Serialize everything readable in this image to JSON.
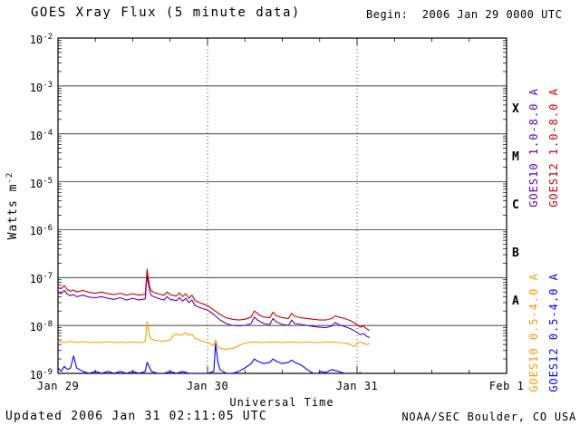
{
  "header": {
    "title": "GOES Xray Flux (5 minute data)",
    "begin_label": "Begin:  2006 Jan 29 0000 UTC"
  },
  "footer": {
    "updated": "Updated 2006 Jan 31 02:11:05 UTC",
    "source": "NOAA/SEC Boulder, CO USA"
  },
  "chart_data": {
    "type": "line",
    "title": "GOES Xray Flux (5 minute data)",
    "xlabel": "Universal Time",
    "ylabel": "Watts m^-2",
    "ylabel_base": "Watts m",
    "ylabel_exponent": "-2",
    "x_unit": "hours since 2006 Jan 29 0000 UTC",
    "xlim": [
      0,
      72
    ],
    "yscale": "log",
    "ylim": [
      1e-09,
      0.01
    ],
    "y_tick_exponents": [
      -2,
      -3,
      -4,
      -5,
      -6,
      -7,
      -8,
      -9
    ],
    "x_ticks": [
      {
        "hour": 0,
        "label": "Jan 29"
      },
      {
        "hour": 24,
        "label": "Jan 30"
      },
      {
        "hour": 48,
        "label": "Jan 31"
      },
      {
        "hour": 72,
        "label": "Feb 1"
      }
    ],
    "day_line_hours": [
      24,
      48,
      72
    ],
    "flux_classes": [
      {
        "label": "X",
        "center_exponent": -3.5
      },
      {
        "label": "M",
        "center_exponent": -4.5
      },
      {
        "label": "C",
        "center_exponent": -5.5
      },
      {
        "label": "B",
        "center_exponent": -6.5
      },
      {
        "label": "A",
        "center_exponent": -7.5
      }
    ],
    "grid": true,
    "legend_position": "right-rotated",
    "series": [
      {
        "id": "goes10-long",
        "name": "GOES10 1.0-8.0 A",
        "color": "#5c00b0",
        "points": [
          [
            0,
            5e-08
          ],
          [
            0.5,
            4.6e-08
          ],
          [
            1,
            5.4e-08
          ],
          [
            1.5,
            4.5e-08
          ],
          [
            2,
            4.2e-08
          ],
          [
            2.5,
            4.4e-08
          ],
          [
            3,
            4e-08
          ],
          [
            4,
            4.3e-08
          ],
          [
            5,
            3.9e-08
          ],
          [
            6,
            3.8e-08
          ],
          [
            7,
            4e-08
          ],
          [
            8,
            3.7e-08
          ],
          [
            9,
            3.5e-08
          ],
          [
            10,
            3.8e-08
          ],
          [
            11,
            3.4e-08
          ],
          [
            12,
            3.7e-08
          ],
          [
            13,
            3.4e-08
          ],
          [
            14,
            3.6e-08
          ],
          [
            14.3,
            1.1e-07
          ],
          [
            14.7,
            5.2e-08
          ],
          [
            15,
            4.2e-08
          ],
          [
            16,
            3.7e-08
          ],
          [
            17,
            3.4e-08
          ],
          [
            17.5,
            4e-08
          ],
          [
            18,
            3.5e-08
          ],
          [
            19,
            3.3e-08
          ],
          [
            19.5,
            3.8e-08
          ],
          [
            20,
            3.2e-08
          ],
          [
            20.5,
            3.7e-08
          ],
          [
            21,
            3e-08
          ],
          [
            21.5,
            3.4e-08
          ],
          [
            22,
            2.6e-08
          ],
          [
            23,
            2.3e-08
          ],
          [
            24,
            2.1e-08
          ],
          [
            25,
            1.7e-08
          ],
          [
            26,
            1.3e-08
          ],
          [
            27,
            1.1e-08
          ],
          [
            28,
            1e-08
          ],
          [
            29,
            9.8e-09
          ],
          [
            30,
            1e-08
          ],
          [
            31,
            1.1e-08
          ],
          [
            31.5,
            1.5e-08
          ],
          [
            32,
            1.3e-08
          ],
          [
            32.5,
            1.2e-08
          ],
          [
            33,
            1.1e-08
          ],
          [
            34,
            1.05e-08
          ],
          [
            34.5,
            1.4e-08
          ],
          [
            35,
            1.2e-08
          ],
          [
            36,
            1.05e-08
          ],
          [
            37,
            1e-08
          ],
          [
            37.5,
            1.3e-08
          ],
          [
            38,
            1.1e-08
          ],
          [
            39,
            1.05e-08
          ],
          [
            40,
            1e-08
          ],
          [
            41,
            9.5e-09
          ],
          [
            42,
            9.2e-09
          ],
          [
            43,
            9e-09
          ],
          [
            44,
            9.8e-09
          ],
          [
            44.5,
            1.15e-08
          ],
          [
            45,
            1.05e-08
          ],
          [
            46,
            9.5e-09
          ],
          [
            47,
            8.5e-09
          ],
          [
            48,
            7.2e-09
          ],
          [
            48.5,
            6.4e-09
          ],
          [
            49,
            6.8e-09
          ],
          [
            49.5,
            6e-09
          ],
          [
            50,
            5.6e-09
          ]
        ]
      },
      {
        "id": "goes12-long",
        "name": "GOES12 1.0-8.0 A",
        "color": "#cc0000",
        "points": [
          [
            0,
            6.2e-08
          ],
          [
            0.5,
            5.8e-08
          ],
          [
            1,
            6.8e-08
          ],
          [
            1.5,
            5.6e-08
          ],
          [
            2,
            5.2e-08
          ],
          [
            2.5,
            5.5e-08
          ],
          [
            3,
            5e-08
          ],
          [
            4,
            5.4e-08
          ],
          [
            5,
            4.9e-08
          ],
          [
            6,
            4.7e-08
          ],
          [
            7,
            5e-08
          ],
          [
            8,
            4.6e-08
          ],
          [
            9,
            4.4e-08
          ],
          [
            10,
            4.7e-08
          ],
          [
            11,
            4.3e-08
          ],
          [
            12,
            4.6e-08
          ],
          [
            13,
            4.3e-08
          ],
          [
            14,
            4.5e-08
          ],
          [
            14.3,
            1.5e-07
          ],
          [
            14.7,
            6.5e-08
          ],
          [
            15,
            5.2e-08
          ],
          [
            16,
            4.6e-08
          ],
          [
            17,
            4.3e-08
          ],
          [
            17.5,
            5e-08
          ],
          [
            18,
            4.4e-08
          ],
          [
            19,
            4.1e-08
          ],
          [
            19.5,
            4.8e-08
          ],
          [
            20,
            4e-08
          ],
          [
            20.5,
            4.6e-08
          ],
          [
            21,
            3.7e-08
          ],
          [
            21.5,
            4.3e-08
          ],
          [
            22,
            3.3e-08
          ],
          [
            23,
            2.9e-08
          ],
          [
            24,
            2.6e-08
          ],
          [
            25,
            2.1e-08
          ],
          [
            26,
            1.7e-08
          ],
          [
            27,
            1.45e-08
          ],
          [
            28,
            1.35e-08
          ],
          [
            29,
            1.3e-08
          ],
          [
            30,
            1.35e-08
          ],
          [
            31,
            1.5e-08
          ],
          [
            31.5,
            2e-08
          ],
          [
            32,
            1.8e-08
          ],
          [
            32.5,
            1.6e-08
          ],
          [
            33,
            1.5e-08
          ],
          [
            34,
            1.45e-08
          ],
          [
            34.5,
            1.9e-08
          ],
          [
            35,
            1.6e-08
          ],
          [
            36,
            1.45e-08
          ],
          [
            37,
            1.4e-08
          ],
          [
            37.5,
            1.8e-08
          ],
          [
            38,
            1.55e-08
          ],
          [
            39,
            1.45e-08
          ],
          [
            40,
            1.4e-08
          ],
          [
            41,
            1.35e-08
          ],
          [
            42,
            1.3e-08
          ],
          [
            43,
            1.3e-08
          ],
          [
            44,
            1.4e-08
          ],
          [
            44.5,
            1.6e-08
          ],
          [
            45,
            1.5e-08
          ],
          [
            46,
            1.4e-08
          ],
          [
            47,
            1.25e-08
          ],
          [
            48,
            1.05e-08
          ],
          [
            48.5,
            9.2e-09
          ],
          [
            49,
            9.8e-09
          ],
          [
            49.5,
            8.6e-09
          ],
          [
            50,
            7.8e-09
          ]
        ]
      },
      {
        "id": "goes10-short",
        "name": "GOES10 0.5-4.0 A",
        "color": "#ff9900",
        "points": [
          [
            0,
            4.6e-09
          ],
          [
            1,
            4.4e-09
          ],
          [
            2,
            4.7e-09
          ],
          [
            3,
            4.4e-09
          ],
          [
            4,
            4.6e-09
          ],
          [
            5,
            4.4e-09
          ],
          [
            6,
            4.5e-09
          ],
          [
            7,
            4.4e-09
          ],
          [
            8,
            4.6e-09
          ],
          [
            9,
            4.4e-09
          ],
          [
            10,
            4.5e-09
          ],
          [
            11,
            4.4e-09
          ],
          [
            12,
            4.5e-09
          ],
          [
            13,
            4.4e-09
          ],
          [
            14,
            4.6e-09
          ],
          [
            14.3,
            1.2e-08
          ],
          [
            14.7,
            6e-09
          ],
          [
            15,
            5.2e-09
          ],
          [
            16,
            4.8e-09
          ],
          [
            17,
            4.7e-09
          ],
          [
            18,
            5e-09
          ],
          [
            18.5,
            6.2e-09
          ],
          [
            19,
            6.6e-09
          ],
          [
            19.5,
            6.2e-09
          ],
          [
            20,
            6.5e-09
          ],
          [
            20.5,
            7e-09
          ],
          [
            21,
            6.2e-09
          ],
          [
            21.5,
            6.6e-09
          ],
          [
            22,
            5.4e-09
          ],
          [
            23,
            4.8e-09
          ],
          [
            24,
            4.4e-09
          ],
          [
            25,
            3.8e-09
          ],
          [
            25.3,
            5e-09
          ],
          [
            25.7,
            3.6e-09
          ],
          [
            26,
            3.3e-09
          ],
          [
            27,
            3.2e-09
          ],
          [
            28,
            3.3e-09
          ],
          [
            29,
            3.8e-09
          ],
          [
            30,
            4.3e-09
          ],
          [
            31,
            4.5e-09
          ],
          [
            32,
            4.5e-09
          ],
          [
            33,
            4.4e-09
          ],
          [
            34,
            4.5e-09
          ],
          [
            35,
            4.5e-09
          ],
          [
            36,
            4.4e-09
          ],
          [
            37,
            4.5e-09
          ],
          [
            38,
            4.5e-09
          ],
          [
            39,
            4.4e-09
          ],
          [
            40,
            4.5e-09
          ],
          [
            41,
            4.4e-09
          ],
          [
            42,
            4.4e-09
          ],
          [
            43,
            4.5e-09
          ],
          [
            44,
            4.5e-09
          ],
          [
            45,
            4.4e-09
          ],
          [
            46,
            4.3e-09
          ],
          [
            47,
            4e-09
          ],
          [
            47.5,
            3.6e-09
          ],
          [
            48,
            4.2e-09
          ],
          [
            48.5,
            4.5e-09
          ],
          [
            49,
            4.3e-09
          ],
          [
            49.5,
            4e-09
          ],
          [
            50,
            4.2e-09
          ]
        ]
      },
      {
        "id": "goes12-short",
        "name": "GOES12 0.5-4.0 A",
        "color": "#0000ff",
        "points": [
          [
            0,
            1.3e-09
          ],
          [
            0.5,
            1.1e-09
          ],
          [
            1,
            1.4e-09
          ],
          [
            1.5,
            1.2e-09
          ],
          [
            2,
            1.3e-09
          ],
          [
            2.5,
            2.3e-09
          ],
          [
            3,
            1.3e-09
          ],
          [
            4,
            1.1e-09
          ],
          [
            5,
            1e-09
          ],
          [
            6,
            1.1e-09
          ],
          [
            7,
            1e-09
          ],
          [
            8,
            1.1e-09
          ],
          [
            9,
            1e-09
          ],
          [
            10,
            1.1e-09
          ],
          [
            11,
            1e-09
          ],
          [
            12,
            1.1e-09
          ],
          [
            13,
            1e-09
          ],
          [
            14,
            1.1e-09
          ],
          [
            14.3,
            1.7e-09
          ],
          [
            15,
            1.1e-09
          ],
          [
            16,
            1e-09
          ],
          [
            17,
            1e-09
          ],
          [
            18,
            1.1e-09
          ],
          [
            19,
            1e-09
          ],
          [
            20,
            1.1e-09
          ],
          [
            21,
            1e-09
          ],
          [
            22,
            1e-09
          ],
          [
            23,
            1e-09
          ],
          [
            24,
            1e-09
          ],
          [
            25,
            1.1e-09
          ],
          [
            25.3,
            4.2e-09
          ],
          [
            25.7,
            1.6e-09
          ],
          [
            26,
            1.2e-09
          ],
          [
            27,
            1e-09
          ],
          [
            28,
            1e-09
          ],
          [
            29,
            1.1e-09
          ],
          [
            30,
            1.3e-09
          ],
          [
            31,
            1.6e-09
          ],
          [
            31.5,
            2e-09
          ],
          [
            32,
            1.8e-09
          ],
          [
            33,
            1.6e-09
          ],
          [
            34,
            1.7e-09
          ],
          [
            34.5,
            2e-09
          ],
          [
            35,
            1.8e-09
          ],
          [
            36,
            1.6e-09
          ],
          [
            37,
            1.7e-09
          ],
          [
            37.5,
            1.9e-09
          ],
          [
            38,
            1.7e-09
          ],
          [
            39,
            1.5e-09
          ],
          [
            40,
            1.2e-09
          ],
          [
            41,
            1e-09
          ],
          [
            41.5,
            8.5e-10
          ],
          [
            42,
            1.1e-09
          ],
          [
            43,
            1.05e-09
          ],
          [
            44,
            1.2e-09
          ],
          [
            45,
            1.1e-09
          ],
          [
            46,
            1e-09
          ],
          [
            47,
            9.5e-10
          ],
          [
            47.5,
            8e-10
          ],
          [
            48,
            9.5e-10
          ],
          [
            48.5,
            1.05e-09
          ],
          [
            49,
            8.5e-10
          ],
          [
            49.5,
            7e-10
          ]
        ]
      }
    ]
  }
}
